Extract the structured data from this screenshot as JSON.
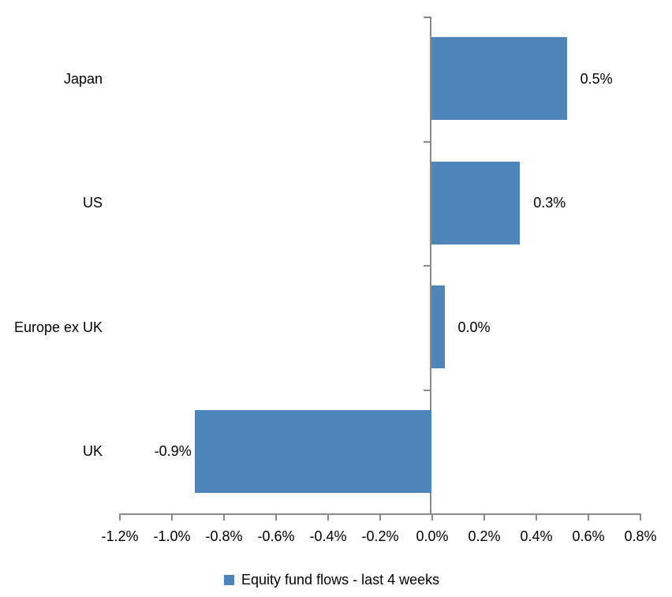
{
  "chart_data": {
    "type": "bar",
    "orientation": "horizontal",
    "title": "",
    "categories": [
      "Japan",
      "US",
      "Europe ex UK",
      "UK"
    ],
    "values": [
      0.52,
      0.34,
      0.05,
      -0.91
    ],
    "value_labels": [
      "0.5%",
      "0.3%",
      "0.0%",
      "-0.9%"
    ],
    "series": [
      {
        "name": "Equity fund flows - last 4 weeks",
        "values": [
          0.52,
          0.34,
          0.05,
          -0.91
        ]
      }
    ],
    "legend": {
      "label": "Equity fund flows - last 4 weeks",
      "position": "bottom"
    },
    "x_axis": {
      "range": [
        -1.2,
        0.8
      ],
      "tick_step": 0.2,
      "ticks": [
        {
          "value": -1.2,
          "label": "-1.2%"
        },
        {
          "value": -1.0,
          "label": "-1.0%"
        },
        {
          "value": -0.8,
          "label": "-0.8%"
        },
        {
          "value": -0.6,
          "label": "-0.6%"
        },
        {
          "value": -0.4,
          "label": "-0.4%"
        },
        {
          "value": -0.2,
          "label": "-0.2%"
        },
        {
          "value": 0.0,
          "label": "0.0%"
        },
        {
          "value": 0.2,
          "label": "0.2%"
        },
        {
          "value": 0.4,
          "label": "0.4%"
        },
        {
          "value": 0.6,
          "label": "0.6%"
        },
        {
          "value": 0.8,
          "label": "0.8%"
        }
      ],
      "grid": false
    },
    "colors": {
      "bar": "#4E86BC",
      "axis": "#8A8A8A",
      "text": "#000000"
    }
  }
}
